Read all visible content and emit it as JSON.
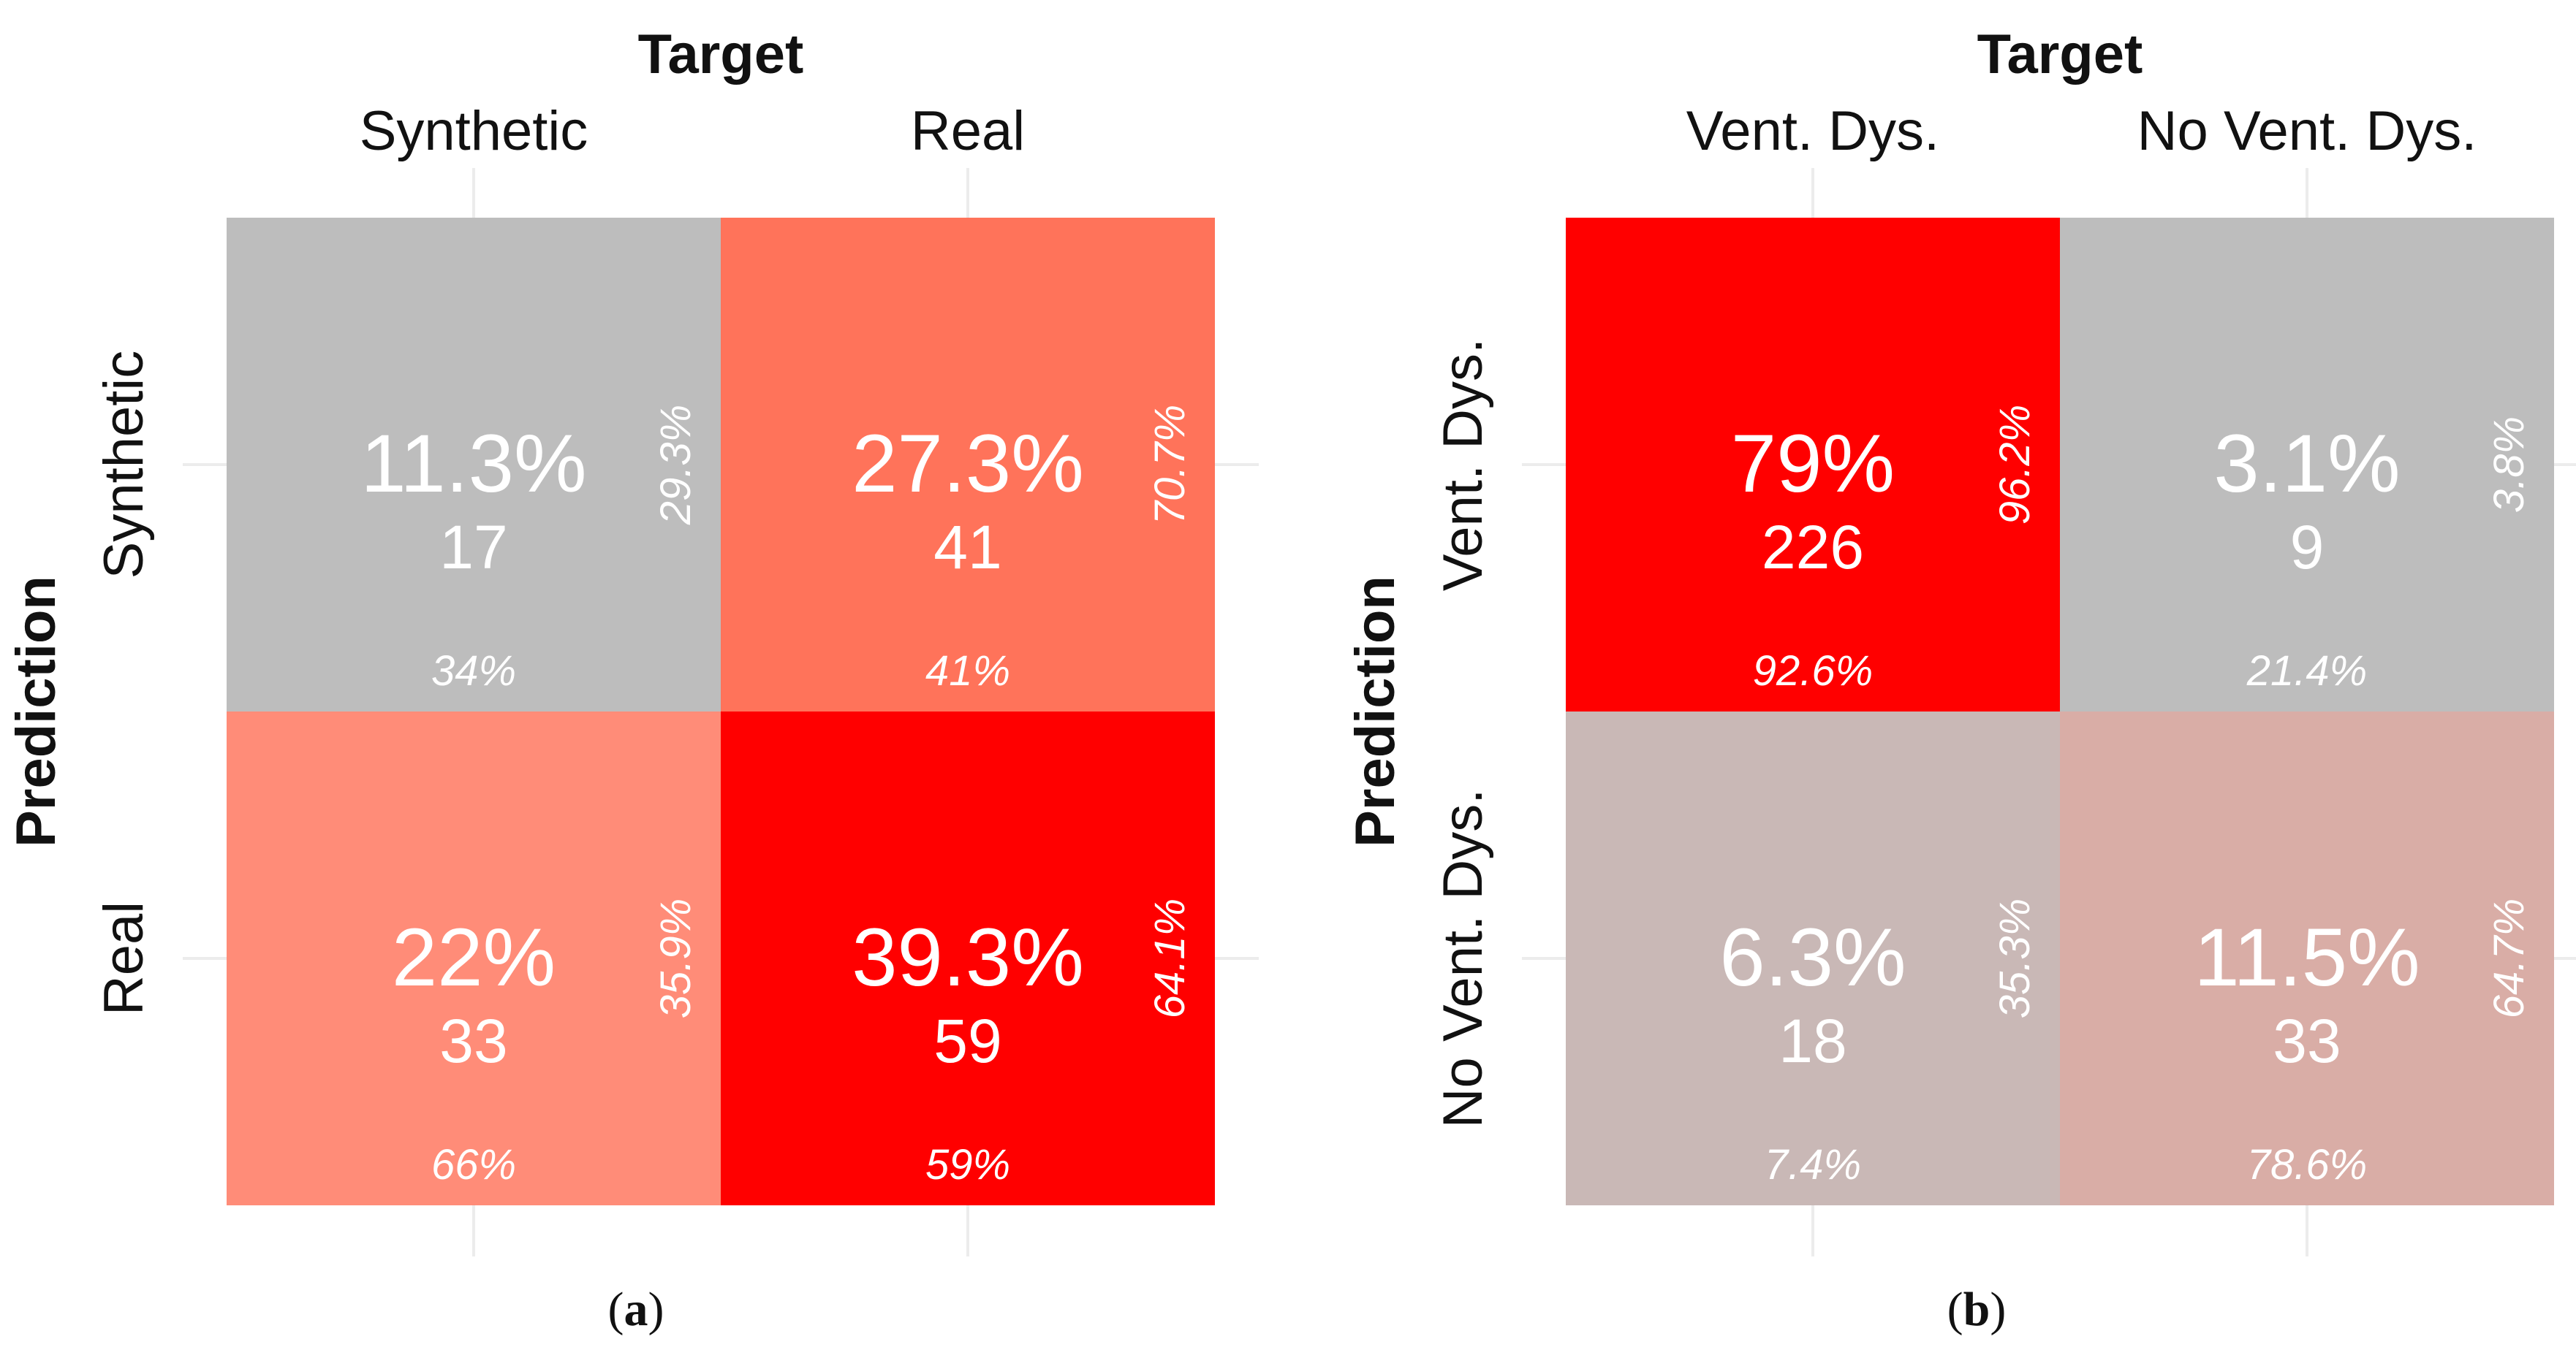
{
  "figure": {
    "captions": [
      "(a)",
      "(b)"
    ]
  },
  "chart_data": [
    {
      "type": "heatmap",
      "panel_label": "(a)",
      "xlabel": "Target",
      "ylabel": "Prediction",
      "x_categories": [
        "Synthetic",
        "Real"
      ],
      "y_categories": [
        "Synthetic",
        "Real"
      ],
      "cells": [
        {
          "prediction": "Synthetic",
          "target": "Synthetic",
          "percent": "11.3%",
          "count": 17,
          "col_pct": "34%",
          "row_pct": "29.3%",
          "fill": "#bdbdbd"
        },
        {
          "prediction": "Synthetic",
          "target": "Real",
          "percent": "27.3%",
          "count": 41,
          "col_pct": "41%",
          "row_pct": "70.7%",
          "fill": "#ff735a"
        },
        {
          "prediction": "Real",
          "target": "Synthetic",
          "percent": "22%",
          "count": 33,
          "col_pct": "66%",
          "row_pct": "35.9%",
          "fill": "#ff8c78"
        },
        {
          "prediction": "Real",
          "target": "Real",
          "percent": "39.3%",
          "count": 59,
          "col_pct": "59%",
          "row_pct": "64.1%",
          "fill": "#ff0000"
        }
      ]
    },
    {
      "type": "heatmap",
      "panel_label": "(b)",
      "xlabel": "Target",
      "ylabel": "Prediction",
      "x_categories": [
        "Vent. Dys.",
        "No Vent. Dys."
      ],
      "y_categories": [
        "Vent. Dys.",
        "No Vent. Dys."
      ],
      "cells": [
        {
          "prediction": "Vent. Dys.",
          "target": "Vent. Dys.",
          "percent": "79%",
          "count": 226,
          "col_pct": "92.6%",
          "row_pct": "96.2%",
          "fill": "#ff0000"
        },
        {
          "prediction": "Vent. Dys.",
          "target": "No Vent. Dys.",
          "percent": "3.1%",
          "count": 9,
          "col_pct": "21.4%",
          "row_pct": "3.8%",
          "fill": "#bdbdbd"
        },
        {
          "prediction": "No Vent. Dys.",
          "target": "Vent. Dys.",
          "percent": "6.3%",
          "count": 18,
          "col_pct": "7.4%",
          "row_pct": "35.3%",
          "fill": "#c9b8b6"
        },
        {
          "prediction": "No Vent. Dys.",
          "target": "No Vent. Dys.",
          "percent": "11.5%",
          "count": 33,
          "col_pct": "78.6%",
          "row_pct": "64.7%",
          "fill": "#d9ada6"
        }
      ]
    }
  ]
}
